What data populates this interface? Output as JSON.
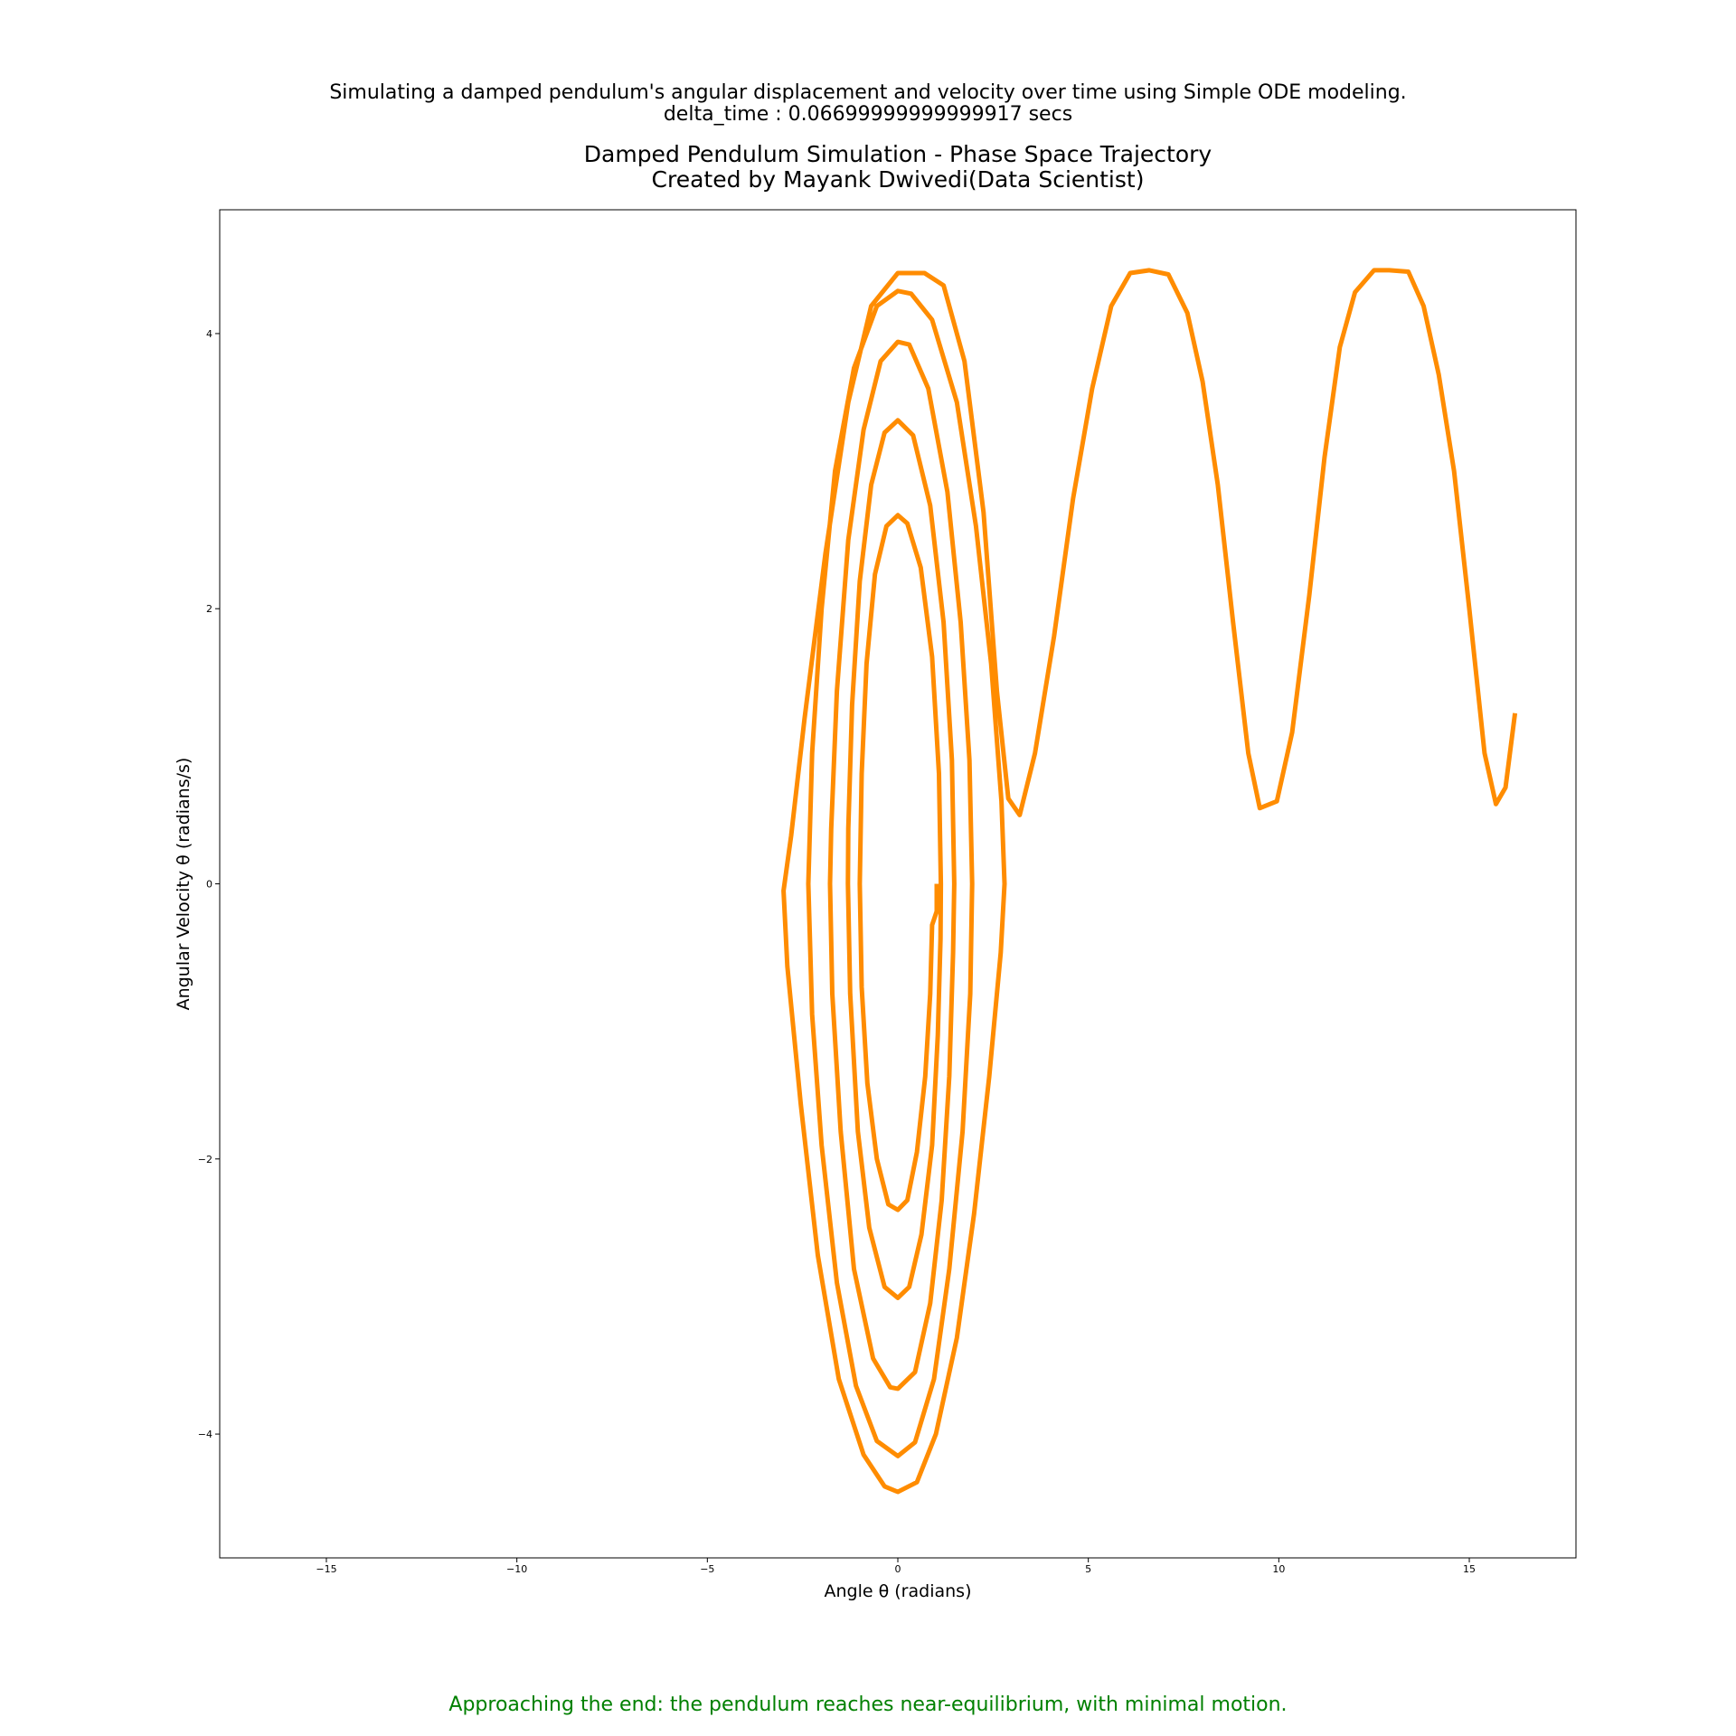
{
  "suptitle": {
    "line1": "Simulating a damped pendulum's angular displacement and velocity over time using Simple ODE modeling.",
    "line2": "delta_time : 0.06699999999999917 secs"
  },
  "footer": {
    "text": "Approaching the end: the pendulum reaches near-equilibrium, with minimal motion.",
    "color": "#008000"
  },
  "chart_data": {
    "type": "line",
    "title": "Damped Pendulum Simulation - Phase Space Trajectory",
    "subtitle": "Created by Mayank Dwivedi(Data Scientist)",
    "xlabel": "Angle θ (radians)",
    "ylabel": "Angular Velocity θ (radians/s)",
    "xlim": [
      -17.8,
      17.8
    ],
    "ylim": [
      -4.9,
      4.9
    ],
    "xticks": [
      -15,
      -10,
      -5,
      0,
      5,
      10,
      15
    ],
    "xtick_labels": [
      "−15",
      "−10",
      "−5",
      "0",
      "5",
      "10",
      "15"
    ],
    "yticks": [
      -4,
      -2,
      0,
      2,
      4
    ],
    "ytick_labels": [
      "−4",
      "−2",
      "0",
      "2",
      "4"
    ],
    "grid": false,
    "line_color": "#ff8c00",
    "series": [
      {
        "points": [
          [
            16.2,
            1.24
          ],
          [
            15.95,
            0.7
          ],
          [
            15.7,
            0.58
          ],
          [
            15.4,
            0.95
          ],
          [
            15.0,
            2.0
          ],
          [
            14.6,
            3.0
          ],
          [
            14.2,
            3.7
          ],
          [
            13.8,
            4.2
          ],
          [
            13.4,
            4.45
          ],
          [
            12.9,
            4.46
          ],
          [
            12.5,
            4.46
          ],
          [
            12.0,
            4.3
          ],
          [
            11.6,
            3.9
          ],
          [
            11.2,
            3.1
          ],
          [
            10.8,
            2.1
          ],
          [
            10.35,
            1.1
          ],
          [
            9.95,
            0.6
          ],
          [
            9.5,
            0.55
          ],
          [
            9.2,
            0.95
          ],
          [
            8.8,
            1.9
          ],
          [
            8.4,
            2.9
          ],
          [
            8.0,
            3.65
          ],
          [
            7.6,
            4.15
          ],
          [
            7.1,
            4.43
          ],
          [
            6.6,
            4.46
          ],
          [
            6.1,
            4.44
          ],
          [
            5.6,
            4.2
          ],
          [
            5.1,
            3.6
          ],
          [
            4.6,
            2.8
          ],
          [
            4.1,
            1.8
          ],
          [
            3.6,
            0.95
          ],
          [
            3.2,
            0.5
          ],
          [
            2.9,
            0.62
          ],
          [
            2.6,
            1.4
          ],
          [
            2.25,
            2.7
          ],
          [
            1.75,
            3.8
          ],
          [
            1.2,
            4.35
          ],
          [
            0.7,
            4.44
          ],
          [
            0.0,
            4.44
          ],
          [
            -0.7,
            4.2
          ],
          [
            -1.3,
            3.5
          ],
          [
            -1.9,
            2.4
          ],
          [
            -2.45,
            1.2
          ],
          [
            -2.8,
            0.35
          ],
          [
            -3.0,
            -0.05
          ],
          [
            -2.9,
            -0.6
          ],
          [
            -2.55,
            -1.6
          ],
          [
            -2.1,
            -2.7
          ],
          [
            -1.55,
            -3.6
          ],
          [
            -0.9,
            -4.15
          ],
          [
            -0.35,
            -4.38
          ],
          [
            0.0,
            -4.42
          ],
          [
            0.5,
            -4.35
          ],
          [
            1.0,
            -4.0
          ],
          [
            1.55,
            -3.3
          ],
          [
            2.0,
            -2.4
          ],
          [
            2.4,
            -1.4
          ],
          [
            2.7,
            -0.5
          ],
          [
            2.8,
            0.0
          ],
          [
            2.72,
            0.6
          ],
          [
            2.45,
            1.6
          ],
          [
            2.05,
            2.6
          ],
          [
            1.55,
            3.5
          ],
          [
            0.9,
            4.1
          ],
          [
            0.35,
            4.29
          ],
          [
            0.0,
            4.31
          ],
          [
            -0.55,
            4.2
          ],
          [
            -1.15,
            3.75
          ],
          [
            -1.65,
            3.0
          ],
          [
            -2.0,
            2.0
          ],
          [
            -2.25,
            0.95
          ],
          [
            -2.35,
            0.0
          ],
          [
            -2.25,
            -0.95
          ],
          [
            -2.0,
            -1.9
          ],
          [
            -1.6,
            -2.9
          ],
          [
            -1.1,
            -3.65
          ],
          [
            -0.55,
            -4.05
          ],
          [
            0.0,
            -4.16
          ],
          [
            0.45,
            -4.06
          ],
          [
            0.95,
            -3.6
          ],
          [
            1.35,
            -2.8
          ],
          [
            1.7,
            -1.8
          ],
          [
            1.9,
            -0.8
          ],
          [
            1.95,
            0.0
          ],
          [
            1.88,
            0.9
          ],
          [
            1.65,
            1.9
          ],
          [
            1.3,
            2.85
          ],
          [
            0.8,
            3.6
          ],
          [
            0.3,
            3.92
          ],
          [
            0.0,
            3.94
          ],
          [
            -0.45,
            3.8
          ],
          [
            -0.9,
            3.3
          ],
          [
            -1.3,
            2.5
          ],
          [
            -1.6,
            1.4
          ],
          [
            -1.75,
            0.4
          ],
          [
            -1.78,
            0.0
          ],
          [
            -1.72,
            -0.8
          ],
          [
            -1.5,
            -1.8
          ],
          [
            -1.15,
            -2.8
          ],
          [
            -0.65,
            -3.45
          ],
          [
            -0.2,
            -3.66
          ],
          [
            0.0,
            -3.67
          ],
          [
            0.45,
            -3.55
          ],
          [
            0.85,
            -3.05
          ],
          [
            1.15,
            -2.3
          ],
          [
            1.35,
            -1.4
          ],
          [
            1.45,
            -0.5
          ],
          [
            1.48,
            0.0
          ],
          [
            1.42,
            0.9
          ],
          [
            1.2,
            1.9
          ],
          [
            0.85,
            2.75
          ],
          [
            0.4,
            3.26
          ],
          [
            0.0,
            3.37
          ],
          [
            -0.35,
            3.28
          ],
          [
            -0.7,
            2.9
          ],
          [
            -1.0,
            2.2
          ],
          [
            -1.2,
            1.3
          ],
          [
            -1.3,
            0.4
          ],
          [
            -1.31,
            0.0
          ],
          [
            -1.25,
            -0.8
          ],
          [
            -1.05,
            -1.8
          ],
          [
            -0.75,
            -2.5
          ],
          [
            -0.35,
            -2.93
          ],
          [
            0.0,
            -3.01
          ],
          [
            0.3,
            -2.93
          ],
          [
            0.62,
            -2.55
          ],
          [
            0.9,
            -1.9
          ],
          [
            1.05,
            -1.1
          ],
          [
            1.12,
            -0.4
          ],
          [
            1.13,
            0.0
          ],
          [
            1.08,
            0.8
          ],
          [
            0.9,
            1.65
          ],
          [
            0.6,
            2.3
          ],
          [
            0.25,
            2.62
          ],
          [
            0.0,
            2.68
          ],
          [
            -0.3,
            2.6
          ],
          [
            -0.6,
            2.25
          ],
          [
            -0.82,
            1.6
          ],
          [
            -0.95,
            0.8
          ],
          [
            -1.0,
            0.0
          ],
          [
            -0.95,
            -0.75
          ],
          [
            -0.8,
            -1.45
          ],
          [
            -0.55,
            -2.0
          ],
          [
            -0.25,
            -2.33
          ],
          [
            0.0,
            -2.37
          ],
          [
            0.25,
            -2.3
          ],
          [
            0.5,
            -1.95
          ],
          [
            0.72,
            -1.4
          ],
          [
            0.85,
            -0.8
          ],
          [
            0.9,
            -0.3
          ],
          [
            1.02,
            -0.2
          ],
          [
            1.02,
            0.0
          ]
        ]
      }
    ]
  }
}
